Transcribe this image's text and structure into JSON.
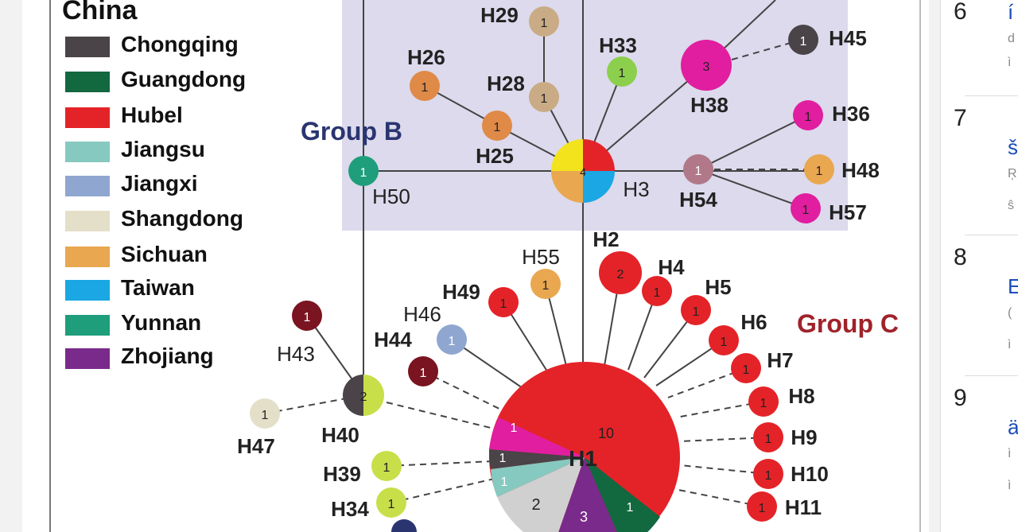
{
  "legend": {
    "title": "China",
    "items": [
      {
        "label": "Chongqing",
        "color": "#4a4348"
      },
      {
        "label": "Guangdong",
        "color": "#12683f"
      },
      {
        "label": "Hubel",
        "color": "#e42328"
      },
      {
        "label": "Jiangsu",
        "color": "#86c9c0"
      },
      {
        "label": "Jiangxi",
        "color": "#8fa7d0"
      },
      {
        "label": "Shangdong",
        "color": "#e3dfc9"
      },
      {
        "label": "Sichuan",
        "color": "#e9a750"
      },
      {
        "label": "Taiwan",
        "color": "#1aa7e3"
      },
      {
        "label": "Yunnan",
        "color": "#1e9e7a"
      },
      {
        "label": "Zhojiang",
        "color": "#7a2a8a"
      }
    ]
  },
  "groups": {
    "b": "Group B",
    "c": "Group C"
  },
  "nodes": {
    "H29": {
      "label": "H29",
      "count": "1"
    },
    "H26": {
      "label": "H26",
      "count": "1"
    },
    "H28": {
      "label": "H28",
      "count": "1"
    },
    "H25": {
      "label": "H25",
      "count": "1"
    },
    "H33": {
      "label": "H33",
      "count": "1"
    },
    "H45": {
      "label": "H45",
      "count": "1"
    },
    "H38": {
      "label": "H38",
      "count": "3"
    },
    "H36": {
      "label": "H36",
      "count": "1"
    },
    "H48": {
      "label": "H48",
      "count": "1"
    },
    "H54": {
      "label": "H54",
      "count": "1"
    },
    "H57": {
      "label": "H57",
      "count": "1"
    },
    "H50": {
      "label": "H50",
      "count": "1"
    },
    "H3": {
      "label": "H3",
      "count": "4"
    },
    "H2": {
      "label": "H2",
      "count": "2"
    },
    "H55": {
      "label": "H55",
      "count": "1"
    },
    "H49": {
      "label": "H49",
      "count": "1"
    },
    "H46": {
      "label": "H46",
      "count": "1"
    },
    "H44": {
      "label": "H44",
      "count": "1"
    },
    "H43": {
      "label": "H43",
      "count": "1"
    },
    "H40": {
      "label": "H40",
      "count": "2"
    },
    "H47": {
      "label": "H47",
      "count": "1"
    },
    "H39": {
      "label": "H39",
      "count": "1"
    },
    "H34": {
      "label": "H34",
      "count": "1"
    },
    "H4": {
      "label": "H4",
      "count": "1"
    },
    "H5": {
      "label": "H5",
      "count": "1"
    },
    "H6": {
      "label": "H6",
      "count": "1"
    },
    "H7": {
      "label": "H7",
      "count": "1"
    },
    "H8": {
      "label": "H8",
      "count": "1"
    },
    "H9": {
      "label": "H9",
      "count": "1"
    },
    "H10": {
      "label": "H10",
      "count": "1"
    },
    "H11": {
      "label": "H11",
      "count": "1"
    },
    "H1": {
      "label": "H1",
      "count_main": "10",
      "count_pink": "1",
      "count_dark": "1",
      "count_teal": "1",
      "count_grey": "2",
      "count_purple": "3",
      "count_green": "1"
    }
  },
  "sidebar": [
    {
      "num": "6",
      "a": "í",
      "b": "d",
      "c": "ì"
    },
    {
      "num": "7",
      "a": "š",
      "b": "Ŗ",
      "c": "ŝ"
    },
    {
      "num": "8",
      "a": "E",
      "b": "(",
      "c": "ì"
    },
    {
      "num": "9",
      "a": "ä",
      "b": "ì",
      "c": "ì"
    }
  ]
}
